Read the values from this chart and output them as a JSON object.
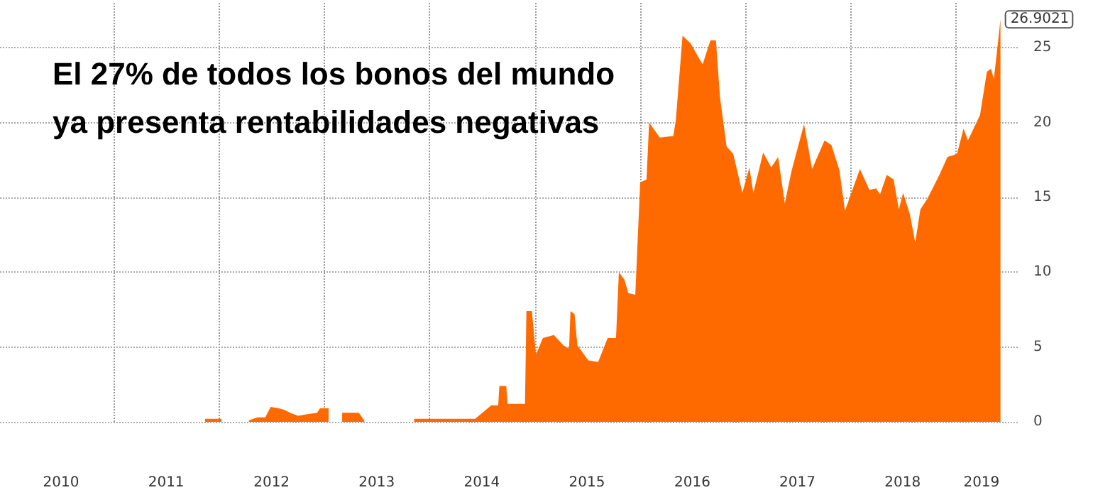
{
  "chart_data": {
    "type": "area",
    "title": "El 27% de todos los bonos del mundo\nya presenta rentabilidades negativas",
    "x": [
      "2011-11-13",
      "2012-01-09",
      "2012-02-15",
      "2012-04-13",
      "2012-05-12",
      "2012-06-09",
      "2012-06-28",
      "2012-07-27",
      "2012-08-15",
      "2012-09-03",
      "2012-10-01",
      "2012-10-29",
      "2012-12-06",
      "2012-12-16",
      "2013-01-15",
      "2013-02-10",
      "2013-03-03",
      "2013-03-13",
      "2013-04-30",
      "2013-05-19",
      "2013-06-15",
      "2013-11-08",
      "2014-06-08",
      "2014-08-03",
      "2014-08-27",
      "2014-08-31",
      "2014-09-24",
      "2014-09-28",
      "2014-11-28",
      "2014-12-03",
      "2014-12-22",
      "2015-01-05",
      "2015-01-29",
      "2015-03-08",
      "2015-04-11",
      "2015-04-30",
      "2015-05-05",
      "2015-05-19",
      "2015-05-29",
      "2015-07-06",
      "2015-08-09",
      "2015-09-11",
      "2015-10-10",
      "2015-10-20",
      "2015-11-08",
      "2015-11-22",
      "2015-12-16",
      "2016-01-02",
      "2016-01-24",
      "2016-02-02",
      "2016-03-10",
      "2016-04-26",
      "2016-05-05",
      "2016-05-28",
      "2016-06-25",
      "2016-07-27",
      "2016-08-06",
      "2016-09-02",
      "2016-09-21",
      "2016-10-05",
      "2016-10-28",
      "2016-11-20",
      "2016-12-22",
      "2017-01-15",
      "2017-01-29",
      "2017-03-04",
      "2017-04-01",
      "2017-04-25",
      "2017-05-18",
      "2017-06-11",
      "2017-07-24",
      "2017-08-21",
      "2017-10-03",
      "2017-10-27",
      "2017-11-24",
      "2017-12-13",
      "2018-01-06",
      "2018-02-03",
      "2018-03-08",
      "2018-03-31",
      "2018-04-14",
      "2018-05-07",
      "2018-05-31",
      "2018-06-18",
      "2018-07-03",
      "2018-07-26",
      "2018-08-14",
      "2018-09-01",
      "2018-09-25",
      "2018-11-06",
      "2018-12-04",
      "2019-01-06",
      "2019-01-29",
      "2019-02-13",
      "2019-03-27",
      "2019-04-20",
      "2019-05-04",
      "2019-05-14",
      "2019-05-28",
      "2019-06-06"
    ],
    "values": [
      0.2,
      0.2,
      null,
      0.1,
      0.3,
      0.3,
      1.0,
      0.9,
      0.8,
      0.6,
      0.4,
      0.5,
      0.6,
      0.9,
      0.9,
      null,
      0.6,
      0.6,
      0.6,
      0.1,
      null,
      0.2,
      0.2,
      1.1,
      1.1,
      2.4,
      2.4,
      1.2,
      1.2,
      7.4,
      7.4,
      4.5,
      5.6,
      5.8,
      5.1,
      4.9,
      7.4,
      7.2,
      5.1,
      4.1,
      4.0,
      5.6,
      5.6,
      10.0,
      9.5,
      8.6,
      8.5,
      16.0,
      16.2,
      20.0,
      19.0,
      19.1,
      20.2,
      25.8,
      25.3,
      24.2,
      23.9,
      25.5,
      25.5,
      21.7,
      18.4,
      17.9,
      15.3,
      17.0,
      15.3,
      18.0,
      17.0,
      17.7,
      14.6,
      16.8,
      19.9,
      16.9,
      18.8,
      18.5,
      16.8,
      14.1,
      15.4,
      16.9,
      15.5,
      15.6,
      15.2,
      16.5,
      16.2,
      14.2,
      15.3,
      13.9,
      12.0,
      14.2,
      14.9,
      16.5,
      17.7,
      17.9,
      19.6,
      18.8,
      20.5,
      23.4,
      23.6,
      22.9,
      25.3,
      26.9021
    ],
    "value_labels": [
      null,
      null,
      null,
      null,
      null,
      null,
      null,
      null,
      null,
      null,
      null,
      null,
      null,
      null,
      null,
      null,
      null,
      null,
      null,
      null,
      null,
      null,
      null,
      null,
      null,
      null,
      null,
      null,
      null,
      null,
      null,
      null,
      null,
      null,
      null,
      null,
      null,
      null,
      null,
      null,
      null,
      null,
      null,
      null,
      null,
      null,
      null,
      null,
      null,
      null,
      null,
      null,
      null,
      null,
      null,
      null,
      null,
      null,
      null,
      null,
      null,
      null,
      null,
      null,
      null,
      null,
      null,
      null,
      null,
      null,
      null,
      null,
      null,
      null,
      null,
      null,
      null,
      null,
      null,
      null,
      null,
      null,
      null,
      null,
      null,
      null,
      null,
      null,
      null,
      null,
      null,
      null,
      null,
      null,
      null,
      null,
      null,
      null,
      null,
      "26.9021"
    ],
    "color": "#ff6a00",
    "xlim": [
      "2009-12-01",
      "2019-08-10"
    ],
    "xticks": [
      {
        "value": "2010-07-01",
        "label": "2010"
      },
      {
        "value": "2011-01-01",
        "label": null
      },
      {
        "value": "2011-07-01",
        "label": "2011"
      },
      {
        "value": "2012-01-01",
        "label": null
      },
      {
        "value": "2012-07-01",
        "label": "2012"
      },
      {
        "value": "2013-01-01",
        "label": null
      },
      {
        "value": "2013-07-01",
        "label": "2013"
      },
      {
        "value": "2014-01-01",
        "label": null
      },
      {
        "value": "2014-07-01",
        "label": "2014"
      },
      {
        "value": "2015-01-01",
        "label": null
      },
      {
        "value": "2015-07-01",
        "label": "2015"
      },
      {
        "value": "2016-01-01",
        "label": null
      },
      {
        "value": "2016-07-01",
        "label": "2016"
      },
      {
        "value": "2017-01-01",
        "label": null
      },
      {
        "value": "2017-07-01",
        "label": "2017"
      },
      {
        "value": "2018-01-01",
        "label": null
      },
      {
        "value": "2018-07-01",
        "label": "2018"
      },
      {
        "value": "2019-01-01",
        "label": null
      },
      {
        "value": "2019-04-01",
        "label": "2019"
      }
    ],
    "ylim": [
      0,
      28
    ],
    "yticks": [
      0,
      5,
      10,
      15,
      20,
      25
    ],
    "grid": true,
    "marker": "none"
  }
}
